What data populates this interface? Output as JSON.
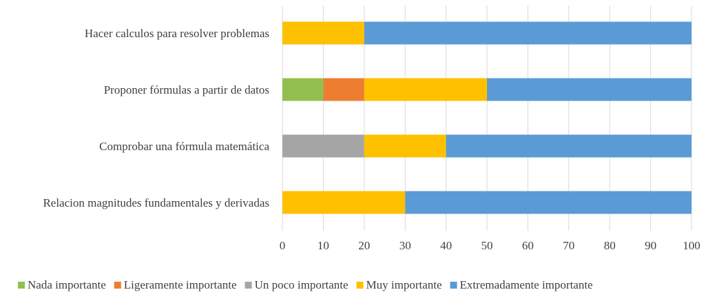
{
  "chart_data": {
    "type": "bar",
    "orientation": "horizontal",
    "stacked": true,
    "categories": [
      "Hacer calculos para resolver problemas",
      "Proponer fórmulas a partir de datos",
      "Comprobar una fórmula matemática",
      "Relacion magnitudes fundamentales y derivadas"
    ],
    "series": [
      {
        "name": "Nada importante",
        "color": "#92c050",
        "values": [
          0,
          10,
          0,
          0
        ]
      },
      {
        "name": "Ligeramente importante",
        "color": "#ed7d31",
        "values": [
          0,
          10,
          0,
          0
        ]
      },
      {
        "name": "Un poco importante",
        "color": "#a5a5a5",
        "values": [
          0,
          0,
          20,
          0
        ]
      },
      {
        "name": "Muy importante",
        "color": "#ffc000",
        "values": [
          20,
          30,
          20,
          30
        ]
      },
      {
        "name": "Extremadamente importante",
        "color": "#5b9bd5",
        "values": [
          80,
          50,
          60,
          70
        ]
      }
    ],
    "xlim": [
      0,
      100
    ],
    "xticks": [
      "0",
      "10",
      "20",
      "30",
      "40",
      "50",
      "60",
      "70",
      "80",
      "90",
      "100"
    ],
    "grid": true,
    "legend_position": "bottom"
  }
}
